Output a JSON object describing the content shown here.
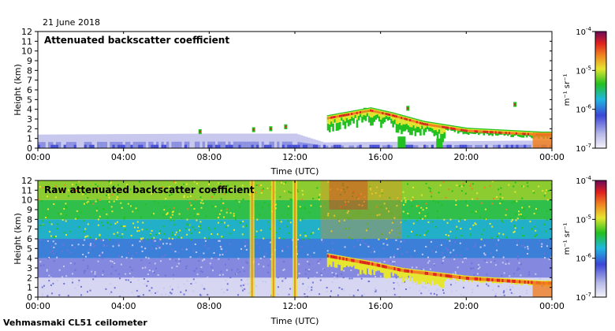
{
  "date_label": "21 June 2018",
  "footer_label": "Vehmasmaki CL51 ceilometer",
  "colors": {
    "low": "#c8c8ee",
    "mid_blue": "#4850d8",
    "green": "#22c020",
    "yellow": "#e6e630",
    "orange": "#f08020",
    "red": "#e02020",
    "purple": "#6a0a5a"
  },
  "chart_data": [
    {
      "type": "heatmap",
      "title": "Attenuated backscatter coefficient",
      "xlabel": "Time (UTC)",
      "ylabel": "Height (km)",
      "x_ticks": [
        "00:00",
        "04:00",
        "08:00",
        "12:00",
        "16:00",
        "20:00",
        "00:00"
      ],
      "y_ticks": [
        "0",
        "1",
        "2",
        "3",
        "4",
        "5",
        "6",
        "7",
        "8",
        "9",
        "10",
        "11",
        "12"
      ],
      "xlim": [
        0,
        24
      ],
      "ylim": [
        0,
        12
      ],
      "colorbar": {
        "label": "m⁻¹ sr⁻¹",
        "scale": "log",
        "range": [
          1e-07,
          0.0001
        ],
        "ticks": [
          {
            "base": "10",
            "exp": "-4"
          },
          {
            "base": "10",
            "exp": "-5"
          },
          {
            "base": "10",
            "exp": "-6"
          },
          {
            "base": "10",
            "exp": "-7"
          }
        ]
      },
      "boundary_layer_top_km": [
        [
          0,
          1.4
        ],
        [
          8,
          1.5
        ],
        [
          12,
          1.5
        ],
        [
          13.3,
          0.6
        ],
        [
          24,
          0.8
        ]
      ],
      "cloud_layer_km": [
        [
          13.5,
          3.2
        ],
        [
          15.5,
          4.0
        ],
        [
          16.5,
          3.5
        ],
        [
          18,
          2.6
        ],
        [
          20,
          1.9
        ],
        [
          23.5,
          1.5
        ]
      ]
    },
    {
      "type": "heatmap",
      "title": "Raw attenuated backscatter coefficient",
      "xlabel": "Time (UTC)",
      "ylabel": "Height (km)",
      "x_ticks": [
        "00:00",
        "04:00",
        "08:00",
        "12:00",
        "16:00",
        "20:00",
        "00:00"
      ],
      "y_ticks": [
        "0",
        "1",
        "2",
        "3",
        "4",
        "5",
        "6",
        "7",
        "8",
        "9",
        "10",
        "11",
        "12"
      ],
      "xlim": [
        0,
        24
      ],
      "ylim": [
        0,
        12
      ],
      "colorbar": {
        "label": "m⁻¹ sr⁻¹",
        "scale": "log",
        "range": [
          1e-07,
          0.0001
        ],
        "ticks": [
          {
            "base": "10",
            "exp": "-4"
          },
          {
            "base": "10",
            "exp": "-5"
          },
          {
            "base": "10",
            "exp": "-6"
          },
          {
            "base": "10",
            "exp": "-7"
          }
        ]
      },
      "noise_streaks_utc": [
        10,
        11,
        12
      ],
      "cloud_layer_km": [
        [
          13.5,
          4.3
        ],
        [
          15.5,
          3.5
        ],
        [
          17,
          2.8
        ],
        [
          18.5,
          2.4
        ],
        [
          20,
          2.0
        ],
        [
          23.5,
          1.5
        ]
      ]
    }
  ]
}
